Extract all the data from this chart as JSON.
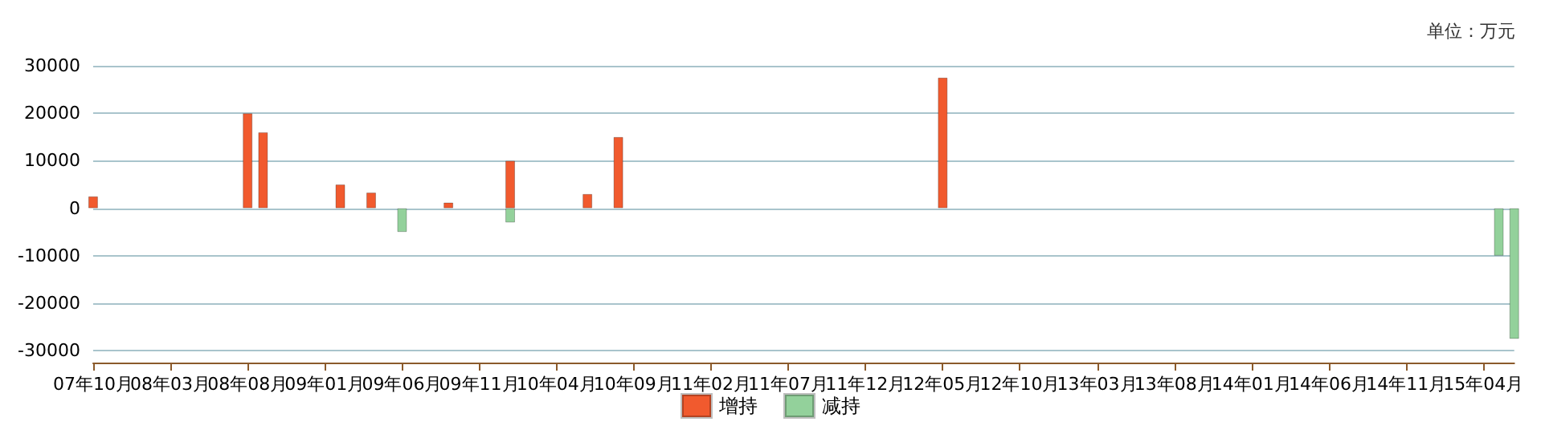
{
  "chart_data": {
    "type": "bar",
    "stacked": true,
    "annotations": [
      "单位：万元"
    ],
    "categories": [
      "07年10月",
      null,
      null,
      null,
      null,
      "08年03月",
      null,
      null,
      null,
      null,
      "08年08月",
      null,
      null,
      null,
      null,
      "09年01月",
      null,
      null,
      null,
      null,
      "09年06月",
      null,
      null,
      null,
      null,
      "09年11月",
      null,
      null,
      null,
      null,
      "10年04月",
      null,
      null,
      null,
      null,
      "10年09月",
      null,
      null,
      null,
      null,
      "11年02月",
      null,
      null,
      null,
      null,
      "11年07月",
      null,
      null,
      null,
      null,
      "11年12月",
      null,
      null,
      null,
      null,
      "12年05月",
      null,
      null,
      null,
      null,
      "12年10月",
      null,
      null,
      null,
      null,
      "13年03月",
      null,
      null,
      null,
      null,
      "13年08月",
      null,
      null,
      null,
      null,
      "14年01月",
      null,
      null,
      null,
      null,
      "14年06月",
      null,
      null,
      null,
      null,
      "14年11月",
      null,
      null,
      null,
      null,
      "15年04月",
      null,
      null
    ],
    "series": [
      {
        "name": "增持",
        "color": "#f15a2e",
        "values": [
          2500,
          null,
          null,
          null,
          null,
          null,
          null,
          null,
          null,
          null,
          20000,
          16000,
          null,
          null,
          null,
          null,
          5000,
          null,
          3300,
          null,
          null,
          null,
          null,
          1200,
          null,
          null,
          null,
          10000,
          null,
          null,
          null,
          null,
          3000,
          null,
          15000,
          null,
          null,
          null,
          null,
          null,
          null,
          null,
          null,
          null,
          null,
          null,
          null,
          null,
          null,
          null,
          null,
          null,
          null,
          null,
          null,
          27500,
          null,
          null,
          null,
          null,
          null,
          null,
          null,
          null,
          null,
          null,
          null,
          null,
          null,
          null,
          null,
          null,
          null,
          null,
          null,
          null,
          null,
          null,
          null,
          null,
          null,
          null,
          null,
          null,
          null,
          null,
          null,
          null,
          null,
          null,
          null,
          null,
          null
        ]
      },
      {
        "name": "减持",
        "color": "#93d19b",
        "values": [
          null,
          null,
          null,
          null,
          null,
          null,
          null,
          null,
          null,
          null,
          null,
          null,
          null,
          null,
          null,
          null,
          null,
          null,
          null,
          null,
          -5000,
          null,
          null,
          null,
          null,
          null,
          null,
          -3000,
          null,
          null,
          null,
          null,
          null,
          null,
          null,
          null,
          null,
          null,
          null,
          null,
          null,
          null,
          null,
          null,
          null,
          null,
          null,
          null,
          null,
          null,
          null,
          null,
          null,
          null,
          null,
          null,
          null,
          null,
          null,
          null,
          null,
          null,
          null,
          null,
          null,
          null,
          null,
          null,
          null,
          null,
          null,
          null,
          null,
          null,
          null,
          null,
          null,
          null,
          null,
          null,
          null,
          null,
          null,
          null,
          null,
          null,
          null,
          null,
          null,
          null,
          null,
          -10000,
          -27500
        ]
      }
    ],
    "ylim": [
      -32500,
      30000
    ],
    "yticks": [
      -30000,
      -20000,
      -10000,
      0,
      10000,
      20000,
      30000
    ],
    "grid": "y",
    "legend": "bottom"
  }
}
